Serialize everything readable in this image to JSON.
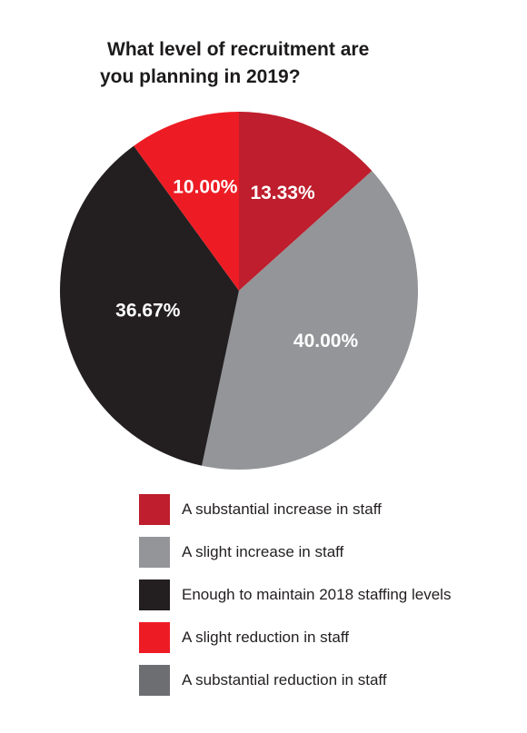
{
  "title_lines": [
    "What level of recruitment are",
    "you planning in 2019?"
  ],
  "chart_data": {
    "type": "pie",
    "title": "What level of recruitment are you planning in 2019?",
    "categories": [
      "A substantial increase in staff",
      "A slight increase in staff",
      "Enough to maintain 2018 staffing levels",
      "A slight reduction in staff",
      "A substantial reduction in staff"
    ],
    "values": [
      13.33,
      40.0,
      36.67,
      10.0,
      0.0
    ],
    "labels": [
      "13.33%",
      "40.00%",
      "36.67%",
      "10.00%",
      ""
    ],
    "colors": [
      "#be1e2d",
      "#939598",
      "#231f20",
      "#ed1c24",
      "#6d6e71"
    ],
    "start": "12 o'clock",
    "direction": "clockwise",
    "legend_position": "bottom"
  }
}
